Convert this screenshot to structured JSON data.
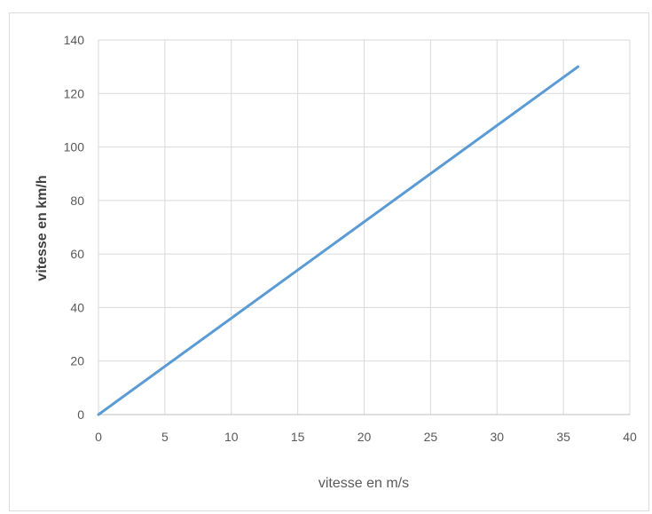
{
  "chart_data": {
    "type": "line",
    "title": "",
    "xlabel": "vitesse en m/s",
    "ylabel": "vitesse en km/h",
    "xlim": [
      0,
      40
    ],
    "ylim": [
      0,
      140
    ],
    "x_ticks": [
      0,
      5,
      10,
      15,
      20,
      25,
      30,
      35,
      40
    ],
    "y_ticks": [
      0,
      20,
      40,
      60,
      80,
      100,
      120,
      140
    ],
    "grid": true,
    "legend": "none",
    "series": [
      {
        "x": [
          0,
          36.1
        ],
        "y": [
          0,
          130
        ],
        "color": "#5b9bd5"
      }
    ]
  }
}
